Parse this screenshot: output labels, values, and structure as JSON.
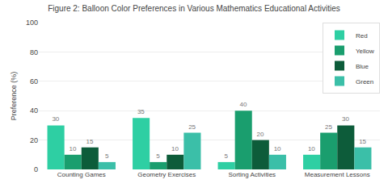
{
  "chart_data": {
    "type": "bar",
    "title": "Figure 2: Balloon Color Preferences in Various Mathematics Educational Activities",
    "ylabel": "Preference (%)",
    "categories": [
      "Counting Games",
      "Geometry Exercises",
      "Sorting Activities",
      "Measurement Lessons"
    ],
    "series": [
      {
        "name": "Red",
        "color": "#2ecfa3",
        "values": [
          30,
          35,
          5,
          10
        ]
      },
      {
        "name": "Yellow",
        "color": "#1a9e6e",
        "values": [
          10,
          5,
          40,
          25
        ]
      },
      {
        "name": "Blue",
        "color": "#0d5c3a",
        "values": [
          15,
          10,
          20,
          30
        ]
      },
      {
        "name": "Green",
        "color": "#3bbfa8",
        "values": [
          5,
          25,
          10,
          15
        ]
      }
    ],
    "ylim": [
      0,
      100
    ],
    "yticks": [
      0,
      20,
      40,
      60,
      80,
      100
    ],
    "grid": true,
    "legend": "upper right",
    "data_labels": true
  }
}
